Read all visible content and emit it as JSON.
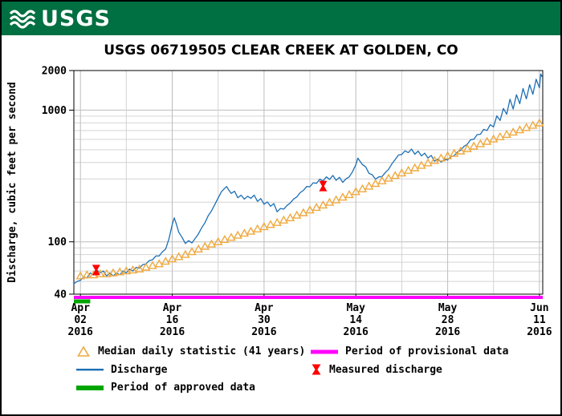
{
  "header": {
    "logo_text": "USGS",
    "bar_color": "#006F41"
  },
  "chart_data": {
    "type": "line",
    "title": "USGS 06719505 CLEAR CREEK AT GOLDEN, CO",
    "ylabel": "Discharge, cubic feet per second",
    "y_scale": "log",
    "ylim": [
      40,
      2000
    ],
    "xlim_days": [
      0,
      71.5
    ],
    "grid": true,
    "legend_position": "bottom",
    "y_tick_labels": [
      "2000",
      "1000",
      "100",
      "40"
    ],
    "y_major_gridlines": [
      100,
      1000
    ],
    "y_minor_gridlines": [
      50,
      60,
      70,
      80,
      90,
      200,
      300,
      400,
      500,
      600,
      700,
      800,
      900
    ],
    "x_ticks_days": [
      1,
      15,
      29,
      43,
      57,
      71
    ],
    "x_minor_gridlines_days": [
      8,
      22,
      36,
      50,
      64
    ],
    "x_tick_labels": [
      {
        "month": "Apr",
        "day": "02",
        "year": "2016"
      },
      {
        "month": "Apr",
        "day": "16",
        "year": "2016"
      },
      {
        "month": "Apr",
        "day": "30",
        "year": "2016"
      },
      {
        "month": "May",
        "day": "14",
        "year": "2016"
      },
      {
        "month": "May",
        "day": "28",
        "year": "2016"
      },
      {
        "month": "Jun",
        "day": "11",
        "year": "2016"
      }
    ],
    "colors": {
      "discharge": "#1C6FB5",
      "median": "#EFA93F",
      "measured": "#FF0000",
      "approved": "#00A500",
      "provisional": "#FF00FF",
      "grid_minor": "#d4d4d4",
      "grid_major": "#bdbdbd"
    },
    "series": [
      {
        "name": "Discharge",
        "type": "line",
        "color": "#1C6FB5",
        "points": [
          [
            0,
            48
          ],
          [
            0.5,
            50
          ],
          [
            1,
            51
          ],
          [
            1.5,
            54
          ],
          [
            2,
            53
          ],
          [
            2.5,
            58
          ],
          [
            3,
            56
          ],
          [
            3.5,
            61
          ],
          [
            4,
            58
          ],
          [
            4.5,
            60
          ],
          [
            5,
            55
          ],
          [
            5.5,
            58
          ],
          [
            6,
            55
          ],
          [
            6.5,
            58
          ],
          [
            7,
            56
          ],
          [
            7.5,
            60
          ],
          [
            8,
            58
          ],
          [
            8.5,
            62
          ],
          [
            9,
            60
          ],
          [
            9.5,
            64
          ],
          [
            10,
            63
          ],
          [
            10.5,
            67
          ],
          [
            11,
            68
          ],
          [
            11.5,
            72
          ],
          [
            12,
            73
          ],
          [
            12.5,
            78
          ],
          [
            13,
            78
          ],
          [
            13.5,
            84
          ],
          [
            14,
            88
          ],
          [
            14.5,
            105
          ],
          [
            15,
            135
          ],
          [
            15.3,
            152
          ],
          [
            15.6,
            138
          ],
          [
            16,
            118
          ],
          [
            16.5,
            108
          ],
          [
            17,
            97
          ],
          [
            17.5,
            102
          ],
          [
            18,
            98
          ],
          [
            18.5,
            106
          ],
          [
            19,
            115
          ],
          [
            19.5,
            128
          ],
          [
            20,
            140
          ],
          [
            20.5,
            158
          ],
          [
            21,
            172
          ],
          [
            21.5,
            192
          ],
          [
            22,
            215
          ],
          [
            22.5,
            240
          ],
          [
            23,
            255
          ],
          [
            23.3,
            263
          ],
          [
            23.6,
            248
          ],
          [
            24,
            233
          ],
          [
            24.5,
            242
          ],
          [
            25,
            216
          ],
          [
            25.5,
            226
          ],
          [
            26,
            211
          ],
          [
            26.5,
            222
          ],
          [
            27,
            214
          ],
          [
            27.5,
            226
          ],
          [
            28,
            203
          ],
          [
            28.5,
            213
          ],
          [
            29,
            193
          ],
          [
            29.5,
            201
          ],
          [
            30,
            186
          ],
          [
            30.5,
            195
          ],
          [
            31,
            169
          ],
          [
            31.5,
            179
          ],
          [
            32,
            177
          ],
          [
            32.5,
            189
          ],
          [
            33,
            197
          ],
          [
            33.5,
            211
          ],
          [
            34,
            219
          ],
          [
            34.5,
            236
          ],
          [
            35,
            246
          ],
          [
            35.5,
            263
          ],
          [
            36,
            262
          ],
          [
            36.5,
            281
          ],
          [
            37,
            278
          ],
          [
            37.5,
            299
          ],
          [
            38,
            290
          ],
          [
            38.5,
            311
          ],
          [
            39,
            298
          ],
          [
            39.5,
            319
          ],
          [
            40,
            293
          ],
          [
            40.5,
            309
          ],
          [
            41,
            283
          ],
          [
            41.5,
            301
          ],
          [
            42,
            311
          ],
          [
            42.5,
            341
          ],
          [
            43,
            385
          ],
          [
            43.3,
            432
          ],
          [
            43.6,
            412
          ],
          [
            44,
            386
          ],
          [
            44.5,
            371
          ],
          [
            45,
            331
          ],
          [
            45.5,
            323
          ],
          [
            46,
            299
          ],
          [
            46.5,
            311
          ],
          [
            47,
            313
          ],
          [
            47.5,
            336
          ],
          [
            48,
            356
          ],
          [
            48.5,
            391
          ],
          [
            49,
            421
          ],
          [
            49.5,
            456
          ],
          [
            50,
            461
          ],
          [
            50.5,
            491
          ],
          [
            51,
            476
          ],
          [
            51.5,
            506
          ],
          [
            52,
            463
          ],
          [
            52.5,
            489
          ],
          [
            53,
            449
          ],
          [
            53.5,
            471
          ],
          [
            54,
            433
          ],
          [
            54.5,
            453
          ],
          [
            55,
            409
          ],
          [
            55.5,
            426
          ],
          [
            56,
            403
          ],
          [
            56.5,
            421
          ],
          [
            57,
            419
          ],
          [
            57.5,
            443
          ],
          [
            58,
            451
          ],
          [
            58.5,
            481
          ],
          [
            59,
            496
          ],
          [
            59.5,
            531
          ],
          [
            60,
            551
          ],
          [
            60.5,
            596
          ],
          [
            61,
            601
          ],
          [
            61.5,
            651
          ],
          [
            62,
            656
          ],
          [
            62.5,
            716
          ],
          [
            63,
            701
          ],
          [
            63.5,
            776
          ],
          [
            64,
            745
          ],
          [
            64.5,
            905
          ],
          [
            65,
            835
          ],
          [
            65.5,
            1030
          ],
          [
            66,
            930
          ],
          [
            66.5,
            1210
          ],
          [
            67,
            1020
          ],
          [
            67.5,
            1310
          ],
          [
            68,
            1120
          ],
          [
            68.5,
            1460
          ],
          [
            69,
            1220
          ],
          [
            69.5,
            1560
          ],
          [
            70,
            1320
          ],
          [
            70.5,
            1720
          ],
          [
            71,
            1480
          ],
          [
            71.2,
            1880
          ],
          [
            71.4,
            1800
          ]
        ]
      },
      {
        "name": "Median daily statistic (41 years)",
        "type": "triangle-markers",
        "color": "#EFA93F",
        "points": [
          [
            1,
            55
          ],
          [
            2,
            56
          ],
          [
            3,
            56
          ],
          [
            4,
            57
          ],
          [
            5,
            57
          ],
          [
            6,
            58
          ],
          [
            7,
            59
          ],
          [
            8,
            60
          ],
          [
            9,
            61
          ],
          [
            10,
            62
          ],
          [
            11,
            64
          ],
          [
            12,
            66
          ],
          [
            13,
            68
          ],
          [
            14,
            71
          ],
          [
            15,
            74
          ],
          [
            16,
            77
          ],
          [
            17,
            80
          ],
          [
            18,
            84
          ],
          [
            19,
            88
          ],
          [
            20,
            92
          ],
          [
            21,
            96
          ],
          [
            22,
            100
          ],
          [
            23,
            104
          ],
          [
            24,
            108
          ],
          [
            25,
            112
          ],
          [
            26,
            116
          ],
          [
            27,
            120
          ],
          [
            28,
            125
          ],
          [
            29,
            130
          ],
          [
            30,
            135
          ],
          [
            31,
            140
          ],
          [
            32,
            146
          ],
          [
            33,
            152
          ],
          [
            34,
            159
          ],
          [
            35,
            166
          ],
          [
            36,
            174
          ],
          [
            37,
            182
          ],
          [
            38,
            190
          ],
          [
            39,
            199
          ],
          [
            40,
            208
          ],
          [
            41,
            218
          ],
          [
            42,
            228
          ],
          [
            43,
            240
          ],
          [
            44,
            252
          ],
          [
            45,
            264
          ],
          [
            46,
            277
          ],
          [
            47,
            290
          ],
          [
            48,
            304
          ],
          [
            49,
            318
          ],
          [
            50,
            333
          ],
          [
            51,
            348
          ],
          [
            52,
            364
          ],
          [
            53,
            380
          ],
          [
            54,
            397
          ],
          [
            55,
            414
          ],
          [
            56,
            432
          ],
          [
            57,
            450
          ],
          [
            58,
            469
          ],
          [
            59,
            489
          ],
          [
            60,
            510
          ],
          [
            61,
            532
          ],
          [
            62,
            555
          ],
          [
            63,
            578
          ],
          [
            64,
            602
          ],
          [
            65,
            627
          ],
          [
            66,
            653
          ],
          [
            67,
            680
          ],
          [
            68,
            708
          ],
          [
            69,
            737
          ],
          [
            70,
            767
          ],
          [
            71,
            798
          ]
        ]
      },
      {
        "name": "Measured discharge",
        "type": "measured-markers",
        "color": "#FF0000",
        "points": [
          [
            3.4,
            61
          ],
          [
            38,
            265
          ]
        ]
      },
      {
        "name": "Period of provisional data",
        "type": "period-bar",
        "color": "#FF00FF",
        "x_range": [
          0,
          71.5
        ],
        "bar_y_offset": 4,
        "bar_thickness": 4
      },
      {
        "name": "Period of approved data",
        "type": "period-bar",
        "color": "#00A500",
        "x_range": [
          0,
          2.5
        ],
        "bar_y_offset": 9,
        "bar_thickness": 5
      }
    ],
    "legend": [
      {
        "label": "Median daily statistic (41 years)",
        "swatch": "triangle"
      },
      {
        "label": "Period of provisional data",
        "swatch": "magenta-bar"
      },
      {
        "label": "Discharge",
        "swatch": "blue-line"
      },
      {
        "label": "Measured discharge",
        "swatch": "red-marker"
      },
      {
        "label": "Period of approved data",
        "swatch": "green-bar"
      }
    ]
  }
}
